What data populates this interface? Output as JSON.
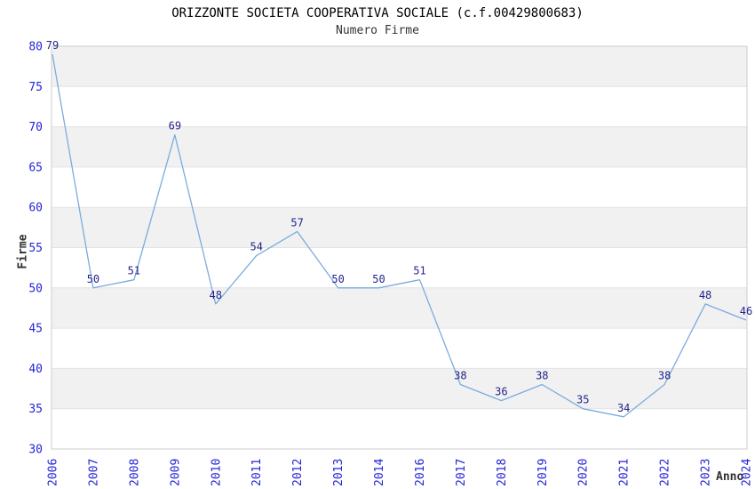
{
  "chart_data": {
    "type": "line",
    "title": "ORIZZONTE SOCIETA COOPERATIVA SOCIALE (c.f.00429800683)",
    "subtitle": "Numero Firme",
    "xlabel": "Anno",
    "ylabel": "Firme",
    "categories": [
      "2006",
      "2007",
      "2008",
      "2009",
      "2010",
      "2011",
      "2012",
      "2013",
      "2014",
      "2016",
      "2017",
      "2018",
      "2019",
      "2020",
      "2021",
      "2022",
      "2023",
      "2024"
    ],
    "values": [
      79,
      50,
      51,
      69,
      48,
      54,
      57,
      50,
      50,
      51,
      38,
      36,
      38,
      35,
      34,
      38,
      48,
      46
    ],
    "ylim": [
      30,
      80
    ],
    "ytick_step": 5,
    "grid": true,
    "legend": "none",
    "point_labels_visible": true,
    "colors": {
      "line": "#7aacde",
      "tick_label": "#2323d7",
      "point_label": "#24248c",
      "band": "#f1f1f1",
      "grid_line": "#e2e2e2",
      "plot_border": "#cccccc",
      "title": "#000000",
      "subtitle": "#333333",
      "axis_title": "#303030"
    }
  }
}
